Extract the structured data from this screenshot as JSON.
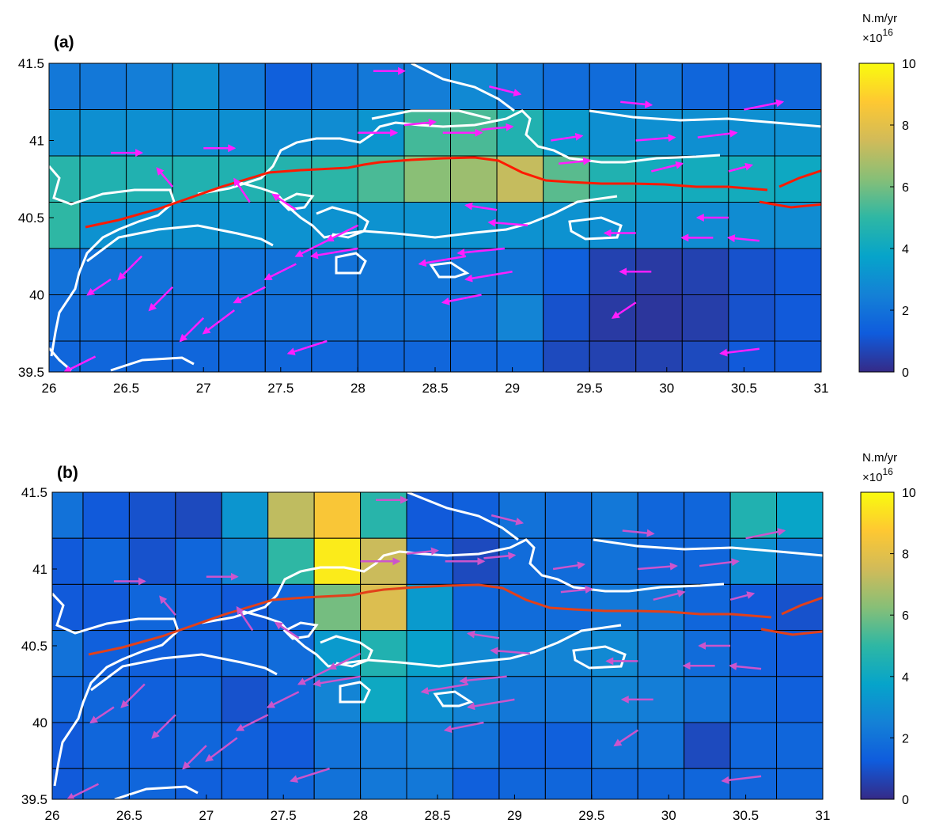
{
  "chart_data": [
    {
      "type": "heatmap",
      "panel_label": "(a)",
      "colorbar": {
        "unit": "N.m/yr",
        "multiplier_base": "×10",
        "multiplier_exp": "16",
        "range": [
          0,
          10
        ],
        "ticks": [
          "0",
          "2",
          "4",
          "6",
          "8",
          "10"
        ],
        "colormap": "parula"
      },
      "xlim": [
        26,
        31
      ],
      "ylim": [
        39.5,
        41.5
      ],
      "x_ticks": [
        "26",
        "26.5",
        "27",
        "27.5",
        "28",
        "28.5",
        "29",
        "29.5",
        "30",
        "30.5",
        "31"
      ],
      "y_ticks": [
        "39.5",
        "40",
        "40.5",
        "41",
        "41.5"
      ],
      "grid_x_edges": [
        26,
        26.2,
        26.5,
        26.8,
        27.1,
        27.4,
        27.7,
        28.0,
        28.3,
        28.6,
        28.9,
        29.2,
        29.5,
        29.8,
        30.1,
        30.4,
        30.7,
        31
      ],
      "grid_y_edges": [
        39.5,
        39.7,
        40.0,
        40.3,
        40.6,
        40.9,
        41.2,
        41.5
      ],
      "values_top_to_bottom": [
        [
          2.2,
          2.2,
          2.4,
          3.0,
          2.2,
          1.4,
          1.8,
          2.2,
          2.4,
          2.8,
          2.2,
          1.8,
          1.8,
          2.0,
          1.6,
          1.4,
          1.6
        ],
        [
          3.0,
          3.0,
          3.0,
          3.0,
          3.0,
          2.9,
          2.9,
          3.2,
          5.3,
          5.4,
          4.6,
          3.4,
          3.0,
          3.0,
          3.0,
          3.0,
          3.0
        ],
        [
          4.8,
          4.6,
          4.6,
          4.6,
          4.6,
          4.7,
          4.9,
          5.4,
          6.3,
          6.6,
          7.3,
          5.6,
          4.6,
          4.2,
          4.2,
          4.2,
          4.0
        ],
        [
          5.0,
          3.1,
          3.1,
          3.1,
          3.1,
          3.1,
          3.1,
          3.1,
          3.1,
          3.1,
          3.1,
          3.1,
          3.0,
          2.9,
          2.9,
          2.9,
          2.9
        ],
        [
          2.0,
          2.0,
          2.0,
          2.0,
          2.0,
          2.0,
          2.0,
          2.1,
          2.1,
          2.1,
          2.1,
          1.4,
          0.6,
          0.4,
          0.6,
          1.0,
          1.2
        ],
        [
          1.8,
          1.8,
          1.8,
          1.8,
          1.8,
          1.9,
          1.9,
          2.0,
          2.0,
          2.0,
          2.6,
          1.0,
          0.4,
          0.3,
          0.5,
          1.0,
          1.2
        ],
        [
          1.6,
          1.6,
          1.6,
          1.6,
          1.6,
          1.6,
          1.6,
          1.6,
          1.6,
          1.6,
          1.6,
          0.8,
          0.6,
          0.6,
          0.8,
          1.2,
          1.2
        ]
      ]
    },
    {
      "type": "heatmap",
      "panel_label": "(b)",
      "colorbar": {
        "unit": "N.m/yr",
        "multiplier_base": "×10",
        "multiplier_exp": "16",
        "range": [
          0,
          10
        ],
        "ticks": [
          "0",
          "2",
          "4",
          "6",
          "8",
          "10"
        ],
        "colormap": "parula"
      },
      "xlim": [
        26,
        31
      ],
      "ylim": [
        39.5,
        41.5
      ],
      "x_ticks": [
        "26",
        "26.5",
        "27",
        "27.5",
        "28",
        "28.5",
        "29",
        "29.5",
        "30",
        "30.5",
        "31"
      ],
      "y_ticks": [
        "39.5",
        "40",
        "40.5",
        "41",
        "41.5"
      ],
      "grid_x_edges": [
        26,
        26.2,
        26.5,
        26.8,
        27.1,
        27.4,
        27.7,
        28.0,
        28.3,
        28.6,
        28.9,
        29.2,
        29.5,
        29.8,
        30.1,
        30.4,
        30.7,
        31
      ],
      "grid_y_edges": [
        39.5,
        39.7,
        40.0,
        40.3,
        40.6,
        40.9,
        41.2,
        41.5
      ],
      "values_top_to_bottom": [
        [
          2.0,
          1.2,
          1.0,
          0.8,
          3.2,
          7.2,
          8.6,
          4.8,
          1.2,
          1.4,
          2.0,
          1.8,
          2.2,
          1.6,
          1.6,
          4.6,
          3.8
        ],
        [
          1.2,
          1.6,
          1.0,
          1.6,
          2.6,
          5.0,
          9.6,
          7.4,
          1.6,
          0.8,
          1.8,
          1.8,
          2.0,
          1.6,
          1.6,
          3.0,
          2.2
        ],
        [
          1.2,
          1.2,
          1.6,
          1.4,
          1.2,
          1.6,
          6.0,
          7.8,
          3.4,
          1.6,
          1.8,
          1.8,
          2.2,
          2.2,
          1.6,
          1.2,
          1.0
        ],
        [
          2.0,
          1.4,
          1.4,
          1.4,
          1.6,
          1.8,
          3.4,
          4.6,
          3.6,
          2.8,
          2.6,
          2.6,
          2.8,
          2.4,
          1.8,
          1.4,
          1.2
        ],
        [
          1.6,
          1.6,
          1.4,
          1.6,
          1.0,
          1.6,
          2.6,
          4.0,
          3.0,
          2.6,
          2.2,
          2.2,
          2.6,
          2.4,
          2.0,
          1.6,
          1.4
        ],
        [
          1.2,
          1.6,
          1.4,
          1.6,
          1.4,
          1.2,
          2.0,
          2.2,
          2.4,
          2.0,
          1.4,
          1.4,
          2.0,
          2.0,
          0.8,
          1.6,
          1.6
        ],
        [
          1.2,
          1.6,
          1.6,
          1.4,
          1.4,
          1.6,
          2.0,
          2.2,
          2.2,
          1.4,
          1.6,
          1.6,
          1.6,
          1.6,
          1.6,
          1.6,
          1.6
        ]
      ]
    }
  ]
}
